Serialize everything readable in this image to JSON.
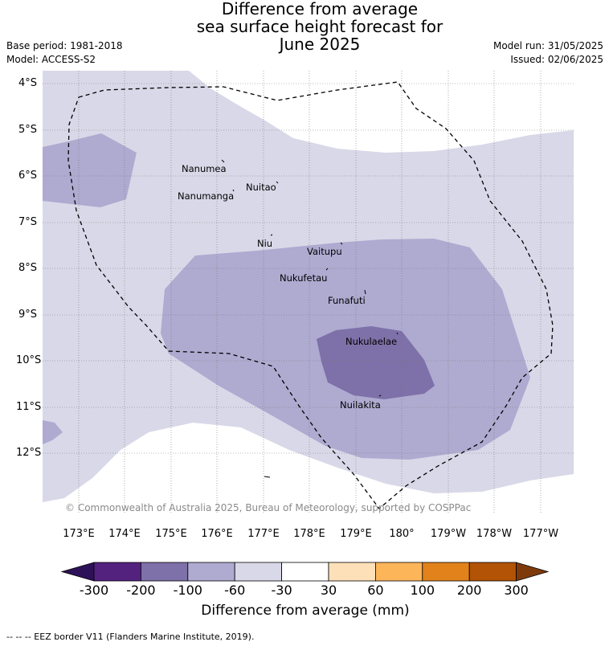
{
  "title_lines": [
    "Difference from average",
    "sea surface height forecast for",
    "June 2025"
  ],
  "base_period": "Base period: 1981-2018",
  "model": "Model: ACCESS-S2",
  "model_run": "Model run: 31/05/2025",
  "issued": "Issued: 02/06/2025",
  "copyright": "© Commonwealth of Australia 2025, Bureau of Meteorology, supported by COSPPac",
  "footer": "-- -- -- EEZ border V11 (Flanders Marine Institute, 2019).",
  "y_ticks": [
    "4°S",
    "5°S",
    "6°S",
    "7°S",
    "8°S",
    "9°S",
    "10°S",
    "11°S",
    "12°S"
  ],
  "x_ticks": [
    "173°E",
    "174°E",
    "175°E",
    "176°E",
    "177°E",
    "178°E",
    "179°E",
    "180°",
    "179°W",
    "178°W",
    "177°W"
  ],
  "places": [
    {
      "name": "Nanumea"
    },
    {
      "name": "Nuitao"
    },
    {
      "name": "Nanumanga"
    },
    {
      "name": "Niu"
    },
    {
      "name": "Vaitupu"
    },
    {
      "name": "Nukufetau"
    },
    {
      "name": "Funafuti"
    },
    {
      "name": "Nukulaelae"
    },
    {
      "name": "Nuilakita"
    }
  ],
  "colorbar": {
    "title": "Difference from average (mm)",
    "labels": [
      "-300",
      "-200",
      "-100",
      "-60",
      "-30",
      "30",
      "60",
      "100",
      "200",
      "300"
    ],
    "colors": [
      "#2e1259",
      "#53227f",
      "#7e70a8",
      "#aeaad0",
      "#d8d8e8",
      "#ffffff",
      "#fde0b8",
      "#fdb55a",
      "#e2821a",
      "#b25305",
      "#7f3a0c"
    ]
  }
}
